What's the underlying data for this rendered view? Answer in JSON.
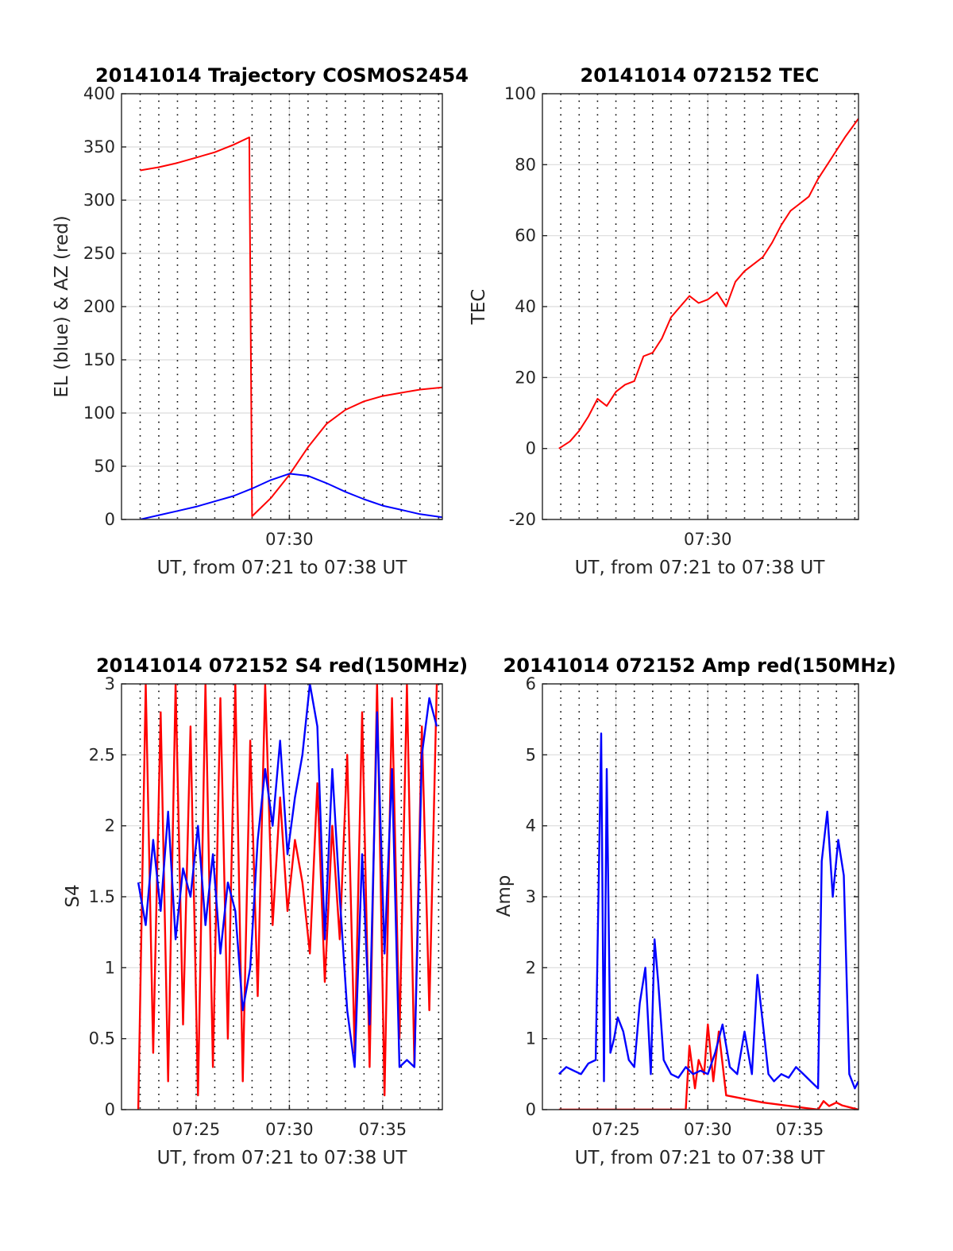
{
  "colors": {
    "el": "#0000ff",
    "az": "#ff0000",
    "tec": "#ff0000",
    "red150": "#ff0000",
    "blue": "#0000ff",
    "axis": "#262626",
    "grid": "#dcdcdc"
  },
  "chart_data": [
    {
      "type": "line",
      "title": "20141014 Trajectory COSMOS2454",
      "xlabel": "UT, from 07:21 to 07:38 UT",
      "ylabel": "EL (blue) & AZ (red)",
      "x_unit": "minutes after 07:00 UT",
      "xlim": [
        21.0,
        38.2
      ],
      "ylim": [
        0,
        400
      ],
      "xticks": [
        {
          "value": 30,
          "label": "07:30"
        }
      ],
      "yticks": [
        {
          "value": 0,
          "label": "0"
        },
        {
          "value": 50,
          "label": "50"
        },
        {
          "value": 100,
          "label": "100"
        },
        {
          "value": 150,
          "label": "150"
        },
        {
          "value": 200,
          "label": "200"
        },
        {
          "value": 250,
          "label": "250"
        },
        {
          "value": 300,
          "label": "300"
        },
        {
          "value": 350,
          "label": "350"
        },
        {
          "value": 400,
          "label": "400"
        }
      ],
      "grid": true,
      "series": [
        {
          "color": "#ff0000",
          "x": [
            22.0,
            23.0,
            24.0,
            25.0,
            26.0,
            27.0,
            27.85,
            28.0,
            29.0,
            30.0,
            31.0,
            32.0,
            33.0,
            34.0,
            35.0,
            36.0,
            37.0,
            38.2
          ],
          "values": [
            328,
            331,
            335,
            340,
            345,
            352,
            359,
            3,
            20,
            42,
            68,
            90,
            103,
            111,
            116,
            119,
            122,
            124
          ]
        },
        {
          "color": "#0000ff",
          "x": [
            22.0,
            23.0,
            24.0,
            25.0,
            26.0,
            27.0,
            28.0,
            29.0,
            30.0,
            31.0,
            32.0,
            33.0,
            34.0,
            35.0,
            36.0,
            37.0,
            38.2
          ],
          "values": [
            0,
            4,
            8,
            12,
            17,
            22,
            29,
            37,
            43,
            41,
            34,
            26,
            19,
            13,
            9,
            5,
            2
          ]
        }
      ]
    },
    {
      "type": "line",
      "title": "20141014 072152 TEC",
      "xlabel": "UT, from 07:21 to 07:38 UT",
      "ylabel": "TEC",
      "x_unit": "minutes after 07:00 UT",
      "xlim": [
        21.0,
        38.2
      ],
      "ylim": [
        -20,
        100
      ],
      "xticks": [
        {
          "value": 30,
          "label": "07:30"
        }
      ],
      "yticks": [
        {
          "value": -20,
          "label": "-20"
        },
        {
          "value": 0,
          "label": "0"
        },
        {
          "value": 20,
          "label": "20"
        },
        {
          "value": 40,
          "label": "40"
        },
        {
          "value": 60,
          "label": "60"
        },
        {
          "value": 80,
          "label": "80"
        },
        {
          "value": 100,
          "label": "100"
        }
      ],
      "grid": true,
      "series": [
        {
          "color": "#ff0000",
          "x": [
            21.9,
            22.5,
            23.0,
            23.5,
            24.0,
            24.5,
            25.0,
            25.5,
            26.0,
            26.5,
            27.0,
            27.5,
            28.0,
            28.5,
            29.0,
            29.5,
            30.0,
            30.5,
            31.0,
            31.5,
            32.0,
            32.5,
            33.0,
            33.5,
            34.0,
            34.5,
            35.0,
            35.5,
            36.0,
            36.5,
            37.0,
            37.5,
            38.2
          ],
          "values": [
            0,
            2,
            5,
            9,
            14,
            12,
            16,
            18,
            19,
            26,
            27,
            31,
            37,
            40,
            43,
            41,
            42,
            44,
            40,
            47,
            50,
            52,
            54,
            58,
            63,
            67,
            69,
            71,
            76,
            80,
            84,
            88,
            93
          ]
        }
      ]
    },
    {
      "type": "line",
      "title": "20141014 072152 S4 red(150MHz)",
      "xlabel": "UT, from 07:21 to 07:38 UT",
      "ylabel": "S4",
      "x_unit": "minutes after 07:00 UT",
      "xlim": [
        21.0,
        38.2
      ],
      "ylim": [
        0,
        3
      ],
      "xticks": [
        {
          "value": 25,
          "label": "07:25"
        },
        {
          "value": 30,
          "label": "07:30"
        },
        {
          "value": 35,
          "label": "07:35"
        }
      ],
      "yticks": [
        {
          "value": 0,
          "label": "0"
        },
        {
          "value": 0.5,
          "label": "0.5"
        },
        {
          "value": 1,
          "label": "1"
        },
        {
          "value": 1.5,
          "label": "1.5"
        },
        {
          "value": 2,
          "label": "2"
        },
        {
          "value": 2.5,
          "label": "2.5"
        },
        {
          "value": 3,
          "label": "3"
        }
      ],
      "grid": true,
      "series": [
        {
          "color": "#ff0000",
          "x": [
            21.9,
            22.3,
            22.7,
            23.1,
            23.5,
            23.9,
            24.3,
            24.7,
            25.1,
            25.5,
            25.9,
            26.3,
            26.7,
            27.1,
            27.5,
            27.9,
            28.3,
            28.7,
            29.1,
            29.5,
            29.9,
            30.3,
            30.7,
            31.1,
            31.5,
            31.9,
            32.3,
            32.7,
            33.1,
            33.5,
            33.9,
            34.3,
            34.7,
            35.1,
            35.5,
            35.9,
            36.3,
            36.7,
            37.1,
            37.5,
            37.9
          ],
          "values": [
            0,
            3,
            0.4,
            2.8,
            0.2,
            3,
            0.6,
            2.7,
            0.1,
            3,
            0.3,
            2.9,
            0.5,
            3,
            0.2,
            2.6,
            0.8,
            3,
            1.3,
            2.2,
            1.4,
            1.9,
            1.6,
            1.1,
            2.3,
            0.9,
            2.0,
            1.2,
            2.5,
            0.4,
            2.8,
            0.3,
            3,
            0.1,
            2.9,
            0.5,
            3,
            0.3,
            2.7,
            0.7,
            3
          ]
        },
        {
          "color": "#0000ff",
          "x": [
            21.9,
            22.3,
            22.7,
            23.1,
            23.5,
            23.9,
            24.3,
            24.7,
            25.1,
            25.5,
            25.9,
            26.3,
            26.7,
            27.1,
            27.5,
            27.9,
            28.3,
            28.7,
            29.1,
            29.5,
            29.9,
            30.3,
            30.7,
            31.1,
            31.5,
            31.9,
            32.3,
            32.7,
            33.1,
            33.5,
            33.9,
            34.3,
            34.7,
            35.1,
            35.5,
            35.9,
            36.3,
            36.7,
            37.1,
            37.5,
            37.9
          ],
          "values": [
            1.6,
            1.3,
            1.9,
            1.4,
            2.1,
            1.2,
            1.7,
            1.5,
            2.0,
            1.3,
            1.8,
            1.1,
            1.6,
            1.4,
            0.7,
            1.0,
            1.9,
            2.4,
            2.0,
            2.6,
            1.8,
            2.2,
            2.5,
            3,
            2.7,
            1.2,
            2.4,
            1.5,
            0.7,
            0.3,
            1.8,
            0.6,
            2.8,
            1.1,
            2.4,
            0.3,
            0.35,
            0.3,
            2.5,
            2.9,
            2.7
          ]
        }
      ]
    },
    {
      "type": "line",
      "title": "20141014 072152 Amp red(150MHz)",
      "xlabel": "UT, from 07:21 to 07:38 UT",
      "ylabel": "Amp",
      "x_unit": "minutes after 07:00 UT",
      "xlim": [
        21.0,
        38.2
      ],
      "ylim": [
        0,
        6
      ],
      "xticks": [
        {
          "value": 25,
          "label": "07:25"
        },
        {
          "value": 30,
          "label": "07:30"
        },
        {
          "value": 35,
          "label": "07:35"
        }
      ],
      "yticks": [
        {
          "value": 0,
          "label": "0"
        },
        {
          "value": 1,
          "label": "1"
        },
        {
          "value": 2,
          "label": "2"
        },
        {
          "value": 3,
          "label": "3"
        },
        {
          "value": 4,
          "label": "4"
        },
        {
          "value": 5,
          "label": "5"
        },
        {
          "value": 6,
          "label": "6"
        }
      ],
      "grid": true,
      "series": [
        {
          "color": "#ff0000",
          "x": [
            21.9,
            26.0,
            28.8,
            29.0,
            29.3,
            29.5,
            29.8,
            30.0,
            30.3,
            30.6,
            31.0,
            33.0,
            36.0,
            36.3,
            36.6,
            37.0,
            37.3,
            38.2
          ],
          "values": [
            0,
            0,
            0,
            0.9,
            0.3,
            0.7,
            0.5,
            1.2,
            0.4,
            1.1,
            0.2,
            0.1,
            0,
            0.12,
            0.05,
            0.1,
            0.06,
            0
          ]
        },
        {
          "color": "#0000ff",
          "x": [
            21.9,
            22.3,
            22.7,
            23.1,
            23.5,
            23.9,
            24.2,
            24.35,
            24.5,
            24.7,
            24.9,
            25.1,
            25.4,
            25.7,
            26.0,
            26.3,
            26.6,
            26.9,
            27.1,
            27.3,
            27.6,
            27.8,
            28.0,
            28.4,
            28.8,
            29.2,
            29.6,
            30.0,
            30.4,
            30.8,
            31.2,
            31.6,
            32.0,
            32.4,
            32.7,
            33.0,
            33.3,
            33.6,
            34.0,
            34.4,
            34.8,
            35.2,
            35.6,
            36.0,
            36.2,
            36.5,
            36.8,
            37.1,
            37.4,
            37.7,
            38.0,
            38.2
          ],
          "values": [
            0.5,
            0.6,
            0.55,
            0.5,
            0.65,
            0.7,
            5.3,
            0.4,
            4.8,
            0.8,
            1.0,
            1.3,
            1.1,
            0.7,
            0.6,
            1.5,
            2.0,
            0.5,
            2.4,
            1.8,
            0.7,
            0.6,
            0.5,
            0.45,
            0.6,
            0.5,
            0.55,
            0.5,
            0.8,
            1.2,
            0.6,
            0.5,
            1.1,
            0.5,
            1.9,
            1.2,
            0.5,
            0.4,
            0.5,
            0.45,
            0.6,
            0.5,
            0.4,
            0.3,
            3.5,
            4.2,
            3.0,
            3.8,
            3.3,
            0.5,
            0.3,
            0.4
          ]
        }
      ]
    }
  ]
}
